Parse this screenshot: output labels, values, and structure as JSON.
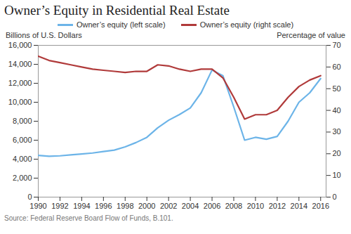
{
  "chart_data": {
    "type": "line",
    "title": "Owner’s Equity in Residential Real Estate",
    "y_label": "Billions of U.S. Dollars",
    "y2_label": "Percentage of value",
    "source": "Source: Federal Reserve Board Flow of Funds, B.101.",
    "legend": "top",
    "grid": false,
    "x": [
      1990,
      1991,
      1992,
      1993,
      1994,
      1995,
      1996,
      1997,
      1998,
      1999,
      2000,
      2001,
      2002,
      2003,
      2004,
      2005,
      2006,
      2007,
      2008,
      2009,
      2010,
      2011,
      2012,
      2013,
      2014,
      2015,
      2016
    ],
    "xlim": [
      1990,
      2016.5
    ],
    "xticks": [
      1990,
      1992,
      1994,
      1996,
      1998,
      2000,
      2002,
      2004,
      2006,
      2008,
      2010,
      2012,
      2014,
      2016
    ],
    "ylim": [
      0,
      16000
    ],
    "yticks": [
      0,
      {
        "value": 2000,
        "label": "2,000"
      },
      {
        "value": 4000,
        "label": "4,000"
      },
      {
        "value": 6000,
        "label": "6,000"
      },
      {
        "value": 8000,
        "label": "8,000"
      },
      {
        "value": 10000,
        "label": "10,000"
      },
      {
        "value": 12000,
        "label": "12,000"
      },
      {
        "value": 14000,
        "label": "14,000"
      },
      {
        "value": 16000,
        "label": "16,000"
      }
    ],
    "y2lim": [
      0,
      70
    ],
    "y2ticks": [
      0,
      10,
      20,
      30,
      40,
      50,
      60,
      70
    ],
    "series": [
      {
        "name": "Owner’s equity (left scale)",
        "color": "#6cb4e8",
        "axis": "y",
        "values": [
          4400,
          4300,
          4350,
          4450,
          4550,
          4650,
          4800,
          4950,
          5300,
          5750,
          6300,
          7300,
          8100,
          8700,
          9400,
          11000,
          13400,
          12800,
          9500,
          6000,
          6300,
          6100,
          6400,
          8000,
          10000,
          11000,
          12500
        ]
      },
      {
        "name": "Owner’s equity (right scale)",
        "color": "#b03a3a",
        "axis": "y2",
        "values": [
          65,
          63,
          62,
          61,
          60,
          59,
          58.5,
          58,
          57.5,
          58,
          58,
          61,
          60.5,
          59,
          58,
          59,
          59,
          55,
          46,
          36,
          38,
          38,
          40,
          46,
          51,
          54,
          56
        ]
      }
    ]
  }
}
